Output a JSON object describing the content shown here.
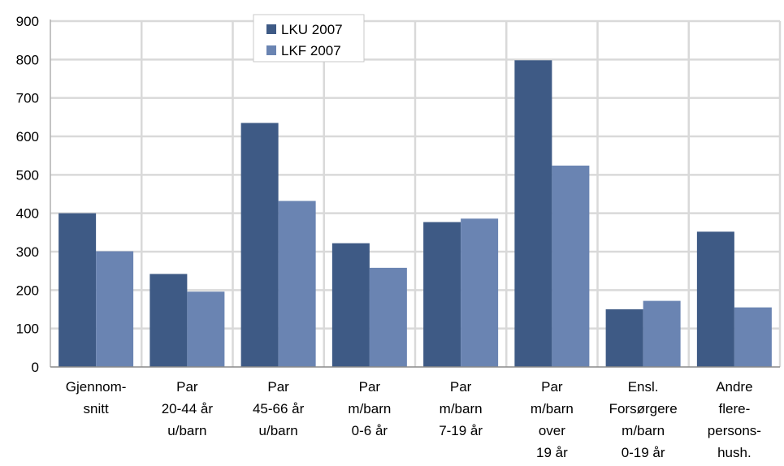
{
  "chart_data": {
    "type": "bar",
    "categories": [
      [
        "Gjennom-",
        "snitt"
      ],
      [
        "Par",
        "20-44 år",
        "u/barn"
      ],
      [
        "Par",
        "45-66 år",
        "u/barn"
      ],
      [
        "Par",
        "m/barn",
        "0-6 år"
      ],
      [
        "Par",
        "m/barn",
        "7-19 år"
      ],
      [
        "Par",
        "m/barn",
        "over",
        "19 år"
      ],
      [
        "Ensl.",
        "Forsørgere",
        "m/barn",
        "0-19 år"
      ],
      [
        "Andre",
        "flere-",
        "persons-",
        "hush."
      ]
    ],
    "series": [
      {
        "name": "LKU 2007",
        "color": "#3e5a85",
        "values": [
          400,
          242,
          635,
          322,
          377,
          798,
          150,
          352
        ]
      },
      {
        "name": "LKF 2007",
        "color": "#6a84b2",
        "values": [
          301,
          196,
          432,
          258,
          386,
          524,
          172,
          155
        ]
      }
    ],
    "ylim": [
      0,
      900
    ],
    "yticks": [
      0,
      100,
      200,
      300,
      400,
      500,
      600,
      700,
      800,
      900
    ],
    "grid": true,
    "legend": "top-center",
    "gridColor": "#d9d9d9"
  }
}
